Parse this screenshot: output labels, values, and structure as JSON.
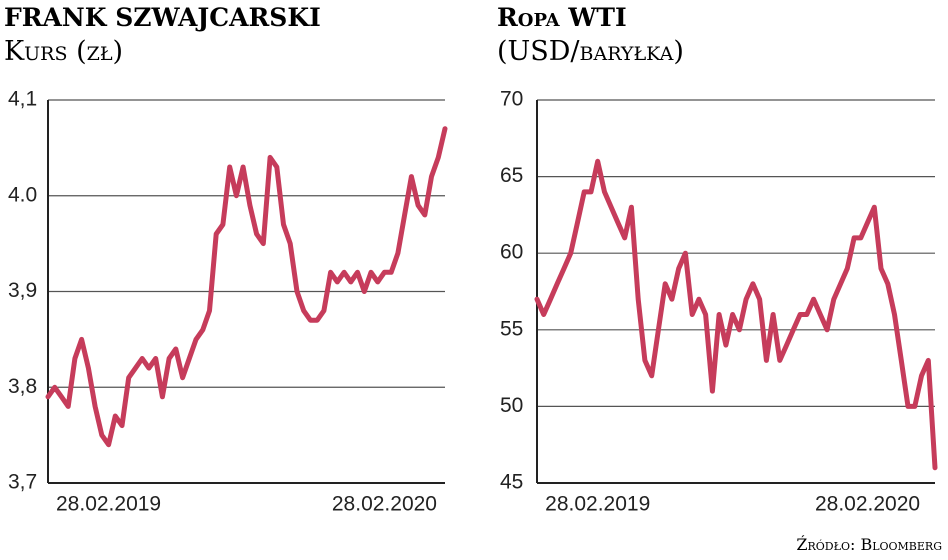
{
  "chart_data": [
    {
      "type": "line",
      "title": "FRANK SZWAJCARSKI",
      "subtitle": "Kurs (zł)",
      "categories": [
        null,
        null,
        null,
        null,
        null,
        null,
        null,
        null,
        null,
        "28.02.2019",
        null,
        null,
        null,
        null,
        null,
        null,
        null,
        null,
        null,
        null,
        null,
        null,
        null,
        null,
        null,
        null,
        null,
        null,
        null,
        null,
        null,
        null,
        null,
        null,
        null,
        null,
        null,
        null,
        null,
        null,
        null,
        null,
        null,
        null,
        null,
        null,
        null,
        null,
        null,
        null,
        "28.02.2020",
        null,
        null,
        null,
        null,
        null,
        null,
        null,
        null,
        null
      ],
      "values": [
        3.79,
        3.8,
        3.79,
        3.78,
        3.83,
        3.85,
        3.82,
        3.78,
        3.75,
        3.74,
        3.77,
        3.76,
        3.81,
        3.82,
        3.83,
        3.82,
        3.83,
        3.79,
        3.83,
        3.84,
        3.81,
        3.83,
        3.85,
        3.86,
        3.88,
        3.96,
        3.97,
        4.03,
        4.0,
        4.03,
        3.99,
        3.96,
        3.95,
        4.04,
        4.03,
        3.97,
        3.95,
        3.9,
        3.88,
        3.87,
        3.87,
        3.88,
        3.92,
        3.91,
        3.92,
        3.91,
        3.92,
        3.9,
        3.92,
        3.91,
        3.92,
        3.92,
        3.94,
        3.98,
        4.02,
        3.99,
        3.98,
        4.02,
        4.04,
        4.07
      ],
      "color": "#c63c5b",
      "ylim": [
        3.7,
        4.1
      ],
      "yticks": [
        {
          "value": 3.7,
          "label": "3,7"
        },
        {
          "value": 3.8,
          "label": "3,8"
        },
        {
          "value": 3.9,
          "label": "3,9"
        },
        {
          "value": 4.0,
          "label": "4.0"
        },
        {
          "value": 4.1,
          "label": "4,1"
        }
      ],
      "grid": true
    },
    {
      "type": "line",
      "title": "Ropa WTI",
      "subtitle": "(USD/baryłka)",
      "categories": [
        null,
        null,
        null,
        null,
        null,
        null,
        null,
        null,
        null,
        "28.02.2019",
        null,
        null,
        null,
        null,
        null,
        null,
        null,
        null,
        null,
        null,
        null,
        null,
        null,
        null,
        null,
        null,
        null,
        null,
        null,
        null,
        null,
        null,
        null,
        null,
        null,
        null,
        null,
        null,
        null,
        null,
        null,
        null,
        null,
        null,
        null,
        null,
        null,
        null,
        null,
        "28.02.2020",
        null,
        null,
        null,
        null,
        null,
        null,
        null,
        null,
        null,
        null
      ],
      "values": [
        57,
        56,
        57,
        58,
        59,
        60,
        62,
        64,
        64,
        66,
        64,
        63,
        62,
        61,
        63,
        57,
        53,
        52,
        55,
        58,
        57,
        59,
        60,
        56,
        57,
        56,
        51,
        56,
        54,
        56,
        55,
        57,
        58,
        57,
        53,
        56,
        53,
        54,
        55,
        56,
        56,
        57,
        56,
        55,
        57,
        58,
        59,
        61,
        61,
        62,
        63,
        59,
        58,
        56,
        53,
        50,
        50,
        52,
        53,
        46
      ],
      "color": "#c63c5b",
      "ylim": [
        45,
        70
      ],
      "yticks": [
        45,
        50,
        55,
        60,
        65,
        70
      ],
      "grid": true
    }
  ],
  "source": "Źródło: Bloomberg"
}
